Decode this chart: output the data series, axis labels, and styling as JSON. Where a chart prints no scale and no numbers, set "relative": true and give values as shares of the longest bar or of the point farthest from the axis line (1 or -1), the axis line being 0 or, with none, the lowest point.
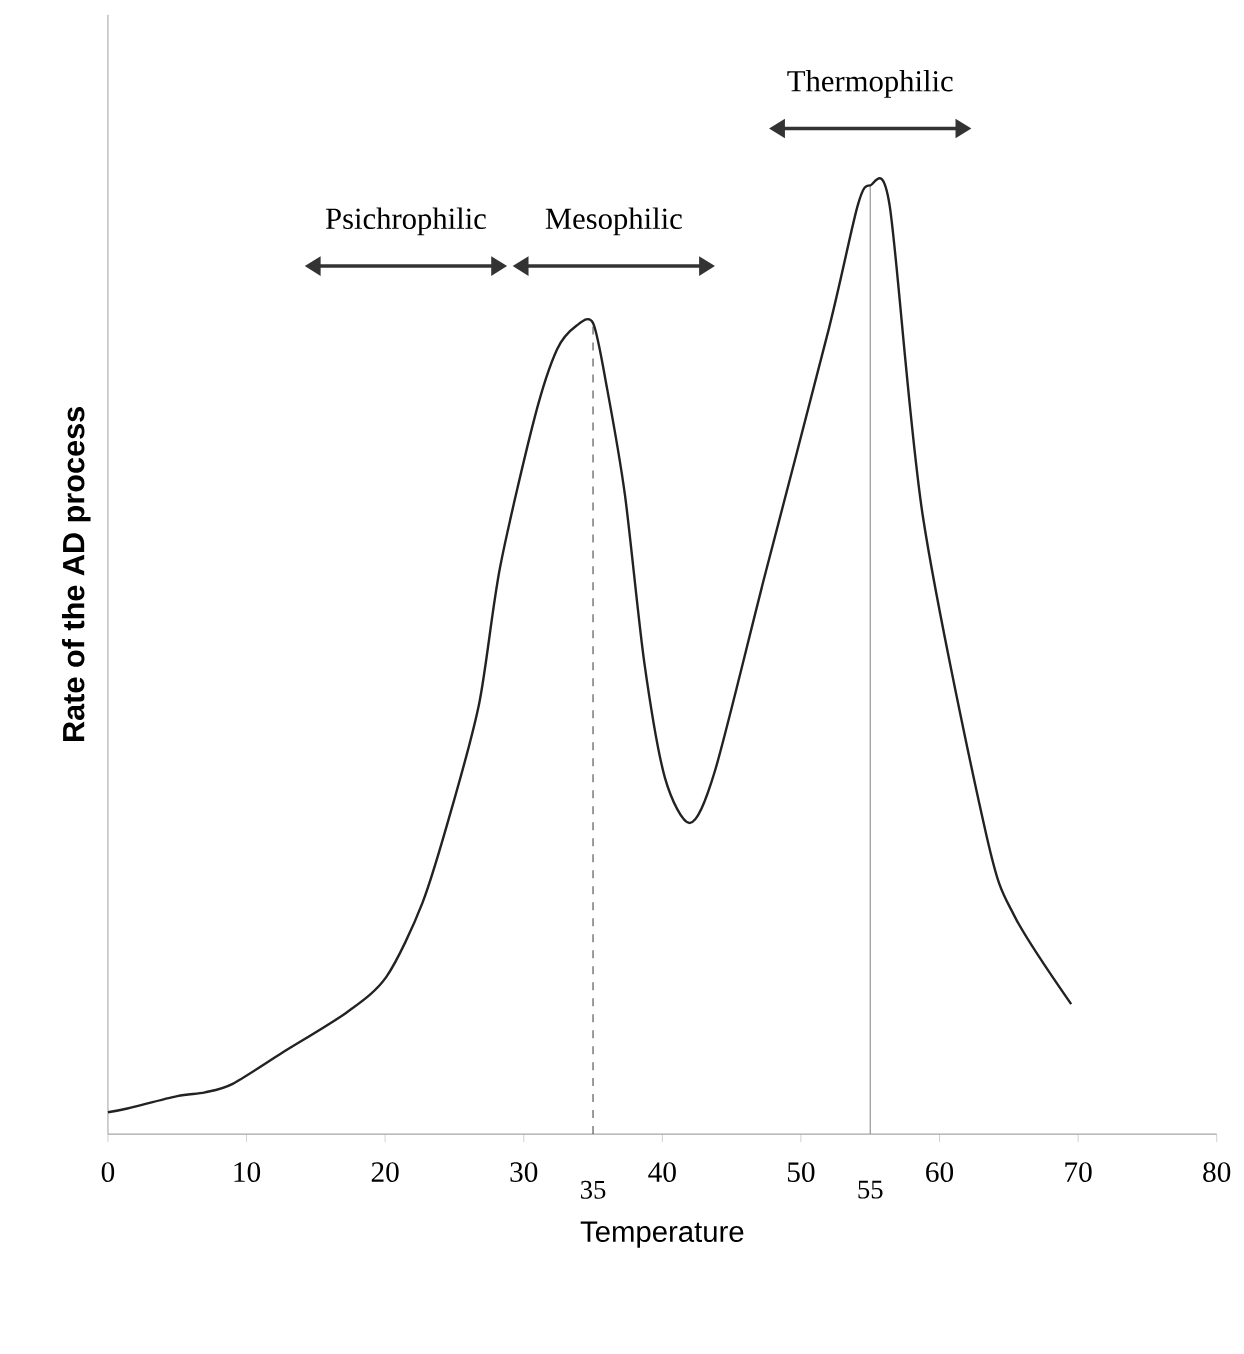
{
  "chart_data": {
    "type": "line",
    "relative": true,
    "xlabel": "Temperature",
    "ylabel": "Rate of the AD process",
    "xlim": [
      0,
      80
    ],
    "xticks": [
      0,
      10,
      20,
      30,
      40,
      50,
      60,
      70,
      80
    ],
    "color": "#222222",
    "marker": "none",
    "line_style": "solid",
    "grid": false,
    "x": [
      0,
      1.4,
      5,
      7,
      9,
      12.6,
      17.2,
      20.1,
      22.7,
      24.8,
      26.8,
      28.3,
      30.8,
      32.4,
      33.8,
      35,
      36,
      37.3,
      38.7,
      40.2,
      42,
      43.8,
      47.4,
      52,
      54.1,
      55,
      56.4,
      58.8,
      63.4,
      65.4,
      69.5
    ],
    "values": [
      0.023,
      0.027,
      0.04,
      0.044,
      0.053,
      0.086,
      0.128,
      0.166,
      0.244,
      0.343,
      0.455,
      0.598,
      0.756,
      0.827,
      0.852,
      0.855,
      0.787,
      0.674,
      0.497,
      0.375,
      0.328,
      0.383,
      0.589,
      0.848,
      0.979,
      1.0,
      0.979,
      0.651,
      0.314,
      0.23,
      0.137
    ],
    "ref_lines": [
      {
        "axis": "x",
        "value": 35,
        "label": "35",
        "line_style": "dashed",
        "color": "#444444"
      },
      {
        "axis": "x",
        "value": 55,
        "label": "55",
        "line_style": "solid",
        "color": "#888888"
      }
    ],
    "annotations": [
      "Psichrophilic",
      "Mesophilic",
      "Thermophilic"
    ]
  }
}
